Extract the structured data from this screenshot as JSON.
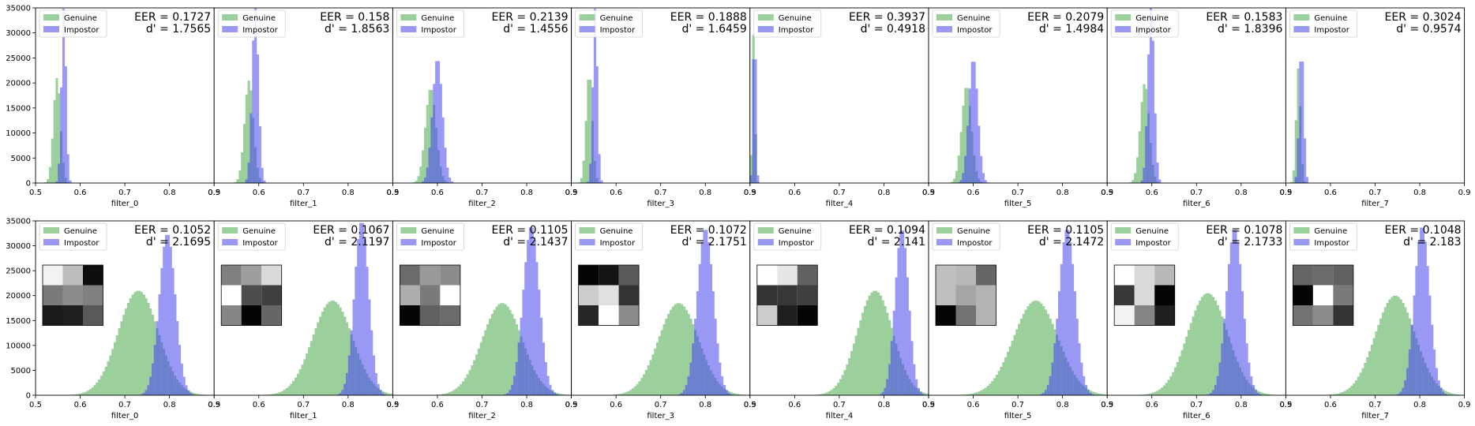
{
  "chart_data": {
    "type": "bar",
    "layout": {
      "rows": 2,
      "cols": 8
    },
    "xlim": [
      0.5,
      0.9
    ],
    "ylim": [
      0,
      35000
    ],
    "xticks": [
      "0.5",
      "0.6",
      "0.7",
      "0.8",
      "0.9"
    ],
    "yticks": [
      "0",
      "5000",
      "10000",
      "15000",
      "20000",
      "25000",
      "30000",
      "35000"
    ],
    "grid": false,
    "legend": {
      "placement": "top-left",
      "entries": [
        "Genuine",
        "Impostor"
      ]
    },
    "colors": {
      "genuine": "#9bcf9b",
      "impostor": "#9999f5",
      "overlap": "#6a7fcd"
    },
    "panels": [
      {
        "xlabel": "filter_0",
        "eer_text": "EER = 0.1727",
        "d_text": "d' = 1.7565",
        "genuine": {
          "mean": 0.548,
          "sd": 0.008,
          "peak": 21000
        },
        "impostor": {
          "mean": 0.563,
          "sd": 0.005,
          "peak": 35000
        },
        "kernel": null
      },
      {
        "xlabel": "filter_1",
        "eer_text": "EER = 0.158",
        "d_text": "d' = 1.8563",
        "genuine": {
          "mean": 0.578,
          "sd": 0.01,
          "peak": 20500
        },
        "impostor": {
          "mean": 0.592,
          "sd": 0.007,
          "peak": 35000
        },
        "kernel": null
      },
      {
        "xlabel": "filter_2",
        "eer_text": "EER = 0.2139",
        "d_text": "d' = 1.4556",
        "genuine": {
          "mean": 0.585,
          "sd": 0.012,
          "peak": 19000
        },
        "impostor": {
          "mean": 0.6,
          "sd": 0.011,
          "peak": 25000
        },
        "kernel": null
      },
      {
        "xlabel": "filter_3",
        "eer_text": "EER = 0.1888",
        "d_text": "d' = 1.6459",
        "genuine": {
          "mean": 0.54,
          "sd": 0.007,
          "peak": 22000
        },
        "impostor": {
          "mean": 0.553,
          "sd": 0.005,
          "peak": 35000
        },
        "kernel": null
      },
      {
        "xlabel": "filter_4",
        "eer_text": "EER = 0.3937",
        "d_text": "d' = 0.4918",
        "genuine": {
          "mean": 0.508,
          "sd": 0.003,
          "peak": 30000
        },
        "impostor": {
          "mean": 0.51,
          "sd": 0.003,
          "peak": 35000
        },
        "kernel": null
      },
      {
        "xlabel": "filter_5",
        "eer_text": "EER = 0.2079",
        "d_text": "d' = 1.4984",
        "genuine": {
          "mean": 0.585,
          "sd": 0.011,
          "peak": 19500
        },
        "impostor": {
          "mean": 0.6,
          "sd": 0.01,
          "peak": 25000
        },
        "kernel": null
      },
      {
        "xlabel": "filter_6",
        "eer_text": "EER = 0.1583",
        "d_text": "d' = 1.8396",
        "genuine": {
          "mean": 0.584,
          "sd": 0.01,
          "peak": 20000
        },
        "impostor": {
          "mean": 0.598,
          "sd": 0.007,
          "peak": 35000
        },
        "kernel": null
      },
      {
        "xlabel": "filter_7",
        "eer_text": "EER = 0.3024",
        "d_text": "d' = 0.9574",
        "genuine": {
          "mean": 0.528,
          "sd": 0.005,
          "peak": 23000
        },
        "impostor": {
          "mean": 0.535,
          "sd": 0.005,
          "peak": 27500
        },
        "kernel": null
      },
      {
        "xlabel": "filter_0",
        "eer_text": "EER = 0.1052",
        "d_text": "d' = 2.1695",
        "genuine": {
          "mean": 0.73,
          "sd": 0.045,
          "peak": 21000
        },
        "impostor": {
          "mean": 0.795,
          "sd": 0.018,
          "peak": 32500
        },
        "kernel": [
          [
            0.95,
            0.74,
            0.05
          ],
          [
            0.48,
            0.55,
            0.5
          ],
          [
            0.1,
            0.12,
            0.35
          ]
        ]
      },
      {
        "xlabel": "filter_1",
        "eer_text": "EER = 0.1067",
        "d_text": "d' = 2.1197",
        "genuine": {
          "mean": 0.765,
          "sd": 0.045,
          "peak": 19000
        },
        "impostor": {
          "mean": 0.83,
          "sd": 0.016,
          "peak": 35000
        },
        "kernel": [
          [
            0.5,
            0.62,
            0.85
          ],
          [
            1.0,
            0.3,
            0.25
          ],
          [
            0.52,
            0.02,
            0.4
          ]
        ]
      },
      {
        "xlabel": "filter_2",
        "eer_text": "EER = 0.1105",
        "d_text": "d' = 2.1437",
        "genuine": {
          "mean": 0.745,
          "sd": 0.045,
          "peak": 18500
        },
        "impostor": {
          "mean": 0.81,
          "sd": 0.018,
          "peak": 34000
        },
        "kernel": [
          [
            0.42,
            0.6,
            0.55
          ],
          [
            0.68,
            0.48,
            1.0
          ],
          [
            0.02,
            0.38,
            0.42
          ]
        ]
      },
      {
        "xlabel": "filter_3",
        "eer_text": "EER = 0.1072",
        "d_text": "d' = 2.1751",
        "genuine": {
          "mean": 0.74,
          "sd": 0.045,
          "peak": 18500
        },
        "impostor": {
          "mean": 0.8,
          "sd": 0.018,
          "peak": 33500
        },
        "kernel": [
          [
            0.02,
            0.08,
            0.35
          ],
          [
            0.8,
            0.88,
            0.2
          ],
          [
            0.15,
            1.0,
            0.55
          ]
        ]
      },
      {
        "xlabel": "filter_4",
        "eer_text": "EER = 0.1094",
        "d_text": "d' = 2.141",
        "genuine": {
          "mean": 0.78,
          "sd": 0.04,
          "peak": 21000
        },
        "impostor": {
          "mean": 0.84,
          "sd": 0.015,
          "peak": 33500
        },
        "kernel": [
          [
            1.0,
            0.9,
            0.38
          ],
          [
            0.2,
            0.22,
            0.25
          ],
          [
            0.8,
            0.12,
            0.02
          ]
        ]
      },
      {
        "xlabel": "filter_5",
        "eer_text": "EER = 0.1105",
        "d_text": "d' = 2.1472",
        "genuine": {
          "mean": 0.74,
          "sd": 0.05,
          "peak": 19000
        },
        "impostor": {
          "mean": 0.81,
          "sd": 0.018,
          "peak": 33500
        },
        "kernel": [
          [
            0.75,
            0.72,
            0.4
          ],
          [
            0.75,
            0.65,
            0.7
          ],
          [
            0.02,
            0.45,
            0.7
          ]
        ]
      },
      {
        "xlabel": "filter_6",
        "eer_text": "EER = 0.1078",
        "d_text": "d' = 2.1733",
        "genuine": {
          "mean": 0.725,
          "sd": 0.045,
          "peak": 20500
        },
        "impostor": {
          "mean": 0.785,
          "sd": 0.018,
          "peak": 33500
        },
        "kernel": [
          [
            1.0,
            0.85,
            0.72
          ],
          [
            0.22,
            0.85,
            0.02
          ],
          [
            0.95,
            0.52,
            0.12
          ]
        ]
      },
      {
        "xlabel": "filter_7",
        "eer_text": "EER = 0.1048",
        "d_text": "d' = 2.183",
        "genuine": {
          "mean": 0.745,
          "sd": 0.045,
          "peak": 20000
        },
        "impostor": {
          "mean": 0.805,
          "sd": 0.017,
          "peak": 34000
        },
        "kernel": [
          [
            0.4,
            0.42,
            0.38
          ],
          [
            0.02,
            1.0,
            0.48
          ],
          [
            0.45,
            0.55,
            0.2
          ]
        ]
      }
    ]
  }
}
